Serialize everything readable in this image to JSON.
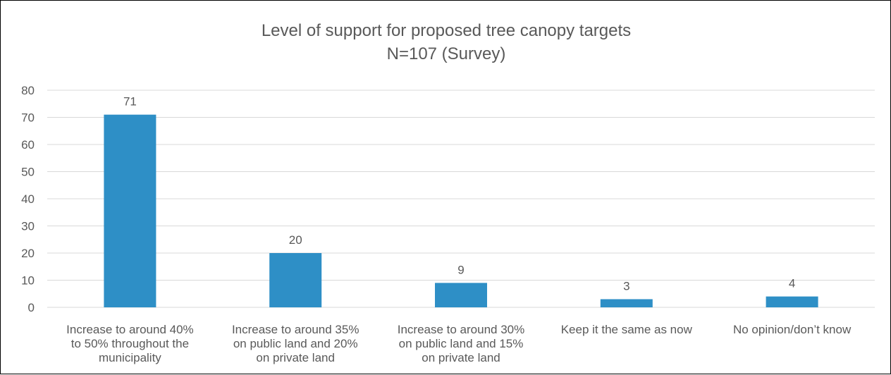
{
  "chart_data": {
    "type": "bar",
    "title": "Level of support for proposed tree canopy targets",
    "subtitle": "N=107 (Survey)",
    "categories": [
      [
        "Increase to around 40%",
        "to 50% throughout the",
        "municipality"
      ],
      [
        "Increase to around 35%",
        "on public land and 20%",
        "on private land"
      ],
      [
        "Increase to around 30%",
        "on public land and 15%",
        "on private land"
      ],
      [
        "Keep it the same as now"
      ],
      [
        "No opinion/don’t know"
      ]
    ],
    "values": [
      71,
      20,
      9,
      3,
      4
    ],
    "ylim": [
      0,
      80
    ],
    "yticks": [
      0,
      10,
      20,
      30,
      40,
      50,
      60,
      70,
      80
    ],
    "grid": true,
    "legend": "none",
    "colors": {
      "bar": "#2e8fc6",
      "grid": "#d9d9d9",
      "text": "#595959",
      "border": "#000000"
    }
  }
}
